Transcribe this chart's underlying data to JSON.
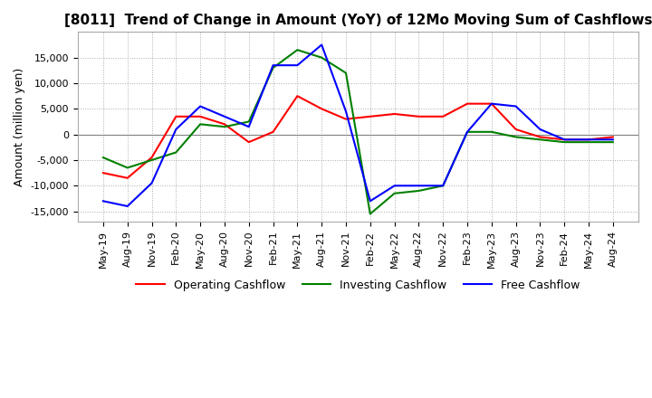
{
  "title": "[8011]  Trend of Change in Amount (YoY) of 12Mo Moving Sum of Cashflows",
  "ylabel": "Amount (million yen)",
  "ylim": [
    -17000,
    20000
  ],
  "yticks": [
    -15000,
    -10000,
    -5000,
    0,
    5000,
    10000,
    15000
  ],
  "x_labels": [
    "May-19",
    "Aug-19",
    "Nov-19",
    "Feb-20",
    "May-20",
    "Aug-20",
    "Nov-20",
    "Feb-21",
    "May-21",
    "Aug-21",
    "Nov-21",
    "Feb-22",
    "May-22",
    "Aug-22",
    "Nov-22",
    "Feb-23",
    "May-23",
    "Aug-23",
    "Nov-23",
    "Feb-24",
    "May-24",
    "Aug-24"
  ],
  "operating": [
    -7500,
    -8500,
    -4500,
    3500,
    3500,
    2000,
    -1500,
    500,
    7500,
    5000,
    3000,
    3500,
    4000,
    3500,
    3500,
    6000,
    6000,
    1000,
    -500,
    -1000,
    -1000,
    -500
  ],
  "investing": [
    -4500,
    -6500,
    -5000,
    -3500,
    2000,
    1500,
    2500,
    13000,
    16500,
    15000,
    12000,
    -15500,
    -11500,
    -11000,
    -10000,
    500,
    500,
    -500,
    -1000,
    -1500,
    -1500,
    -1500
  ],
  "free": [
    -13000,
    -14000,
    -9500,
    1000,
    5500,
    3500,
    1500,
    13500,
    13500,
    17500,
    4500,
    -13000,
    -10000,
    -10000,
    -10000,
    500,
    6000,
    5500,
    1000,
    -1000,
    -1000,
    -1000
  ],
  "operating_color": "#ff0000",
  "investing_color": "#008000",
  "free_color": "#0000ff",
  "background_color": "#ffffff",
  "grid_color": "#aaaaaa",
  "title_fontsize": 11,
  "axis_fontsize": 9,
  "tick_fontsize": 8,
  "linewidth": 1.5
}
